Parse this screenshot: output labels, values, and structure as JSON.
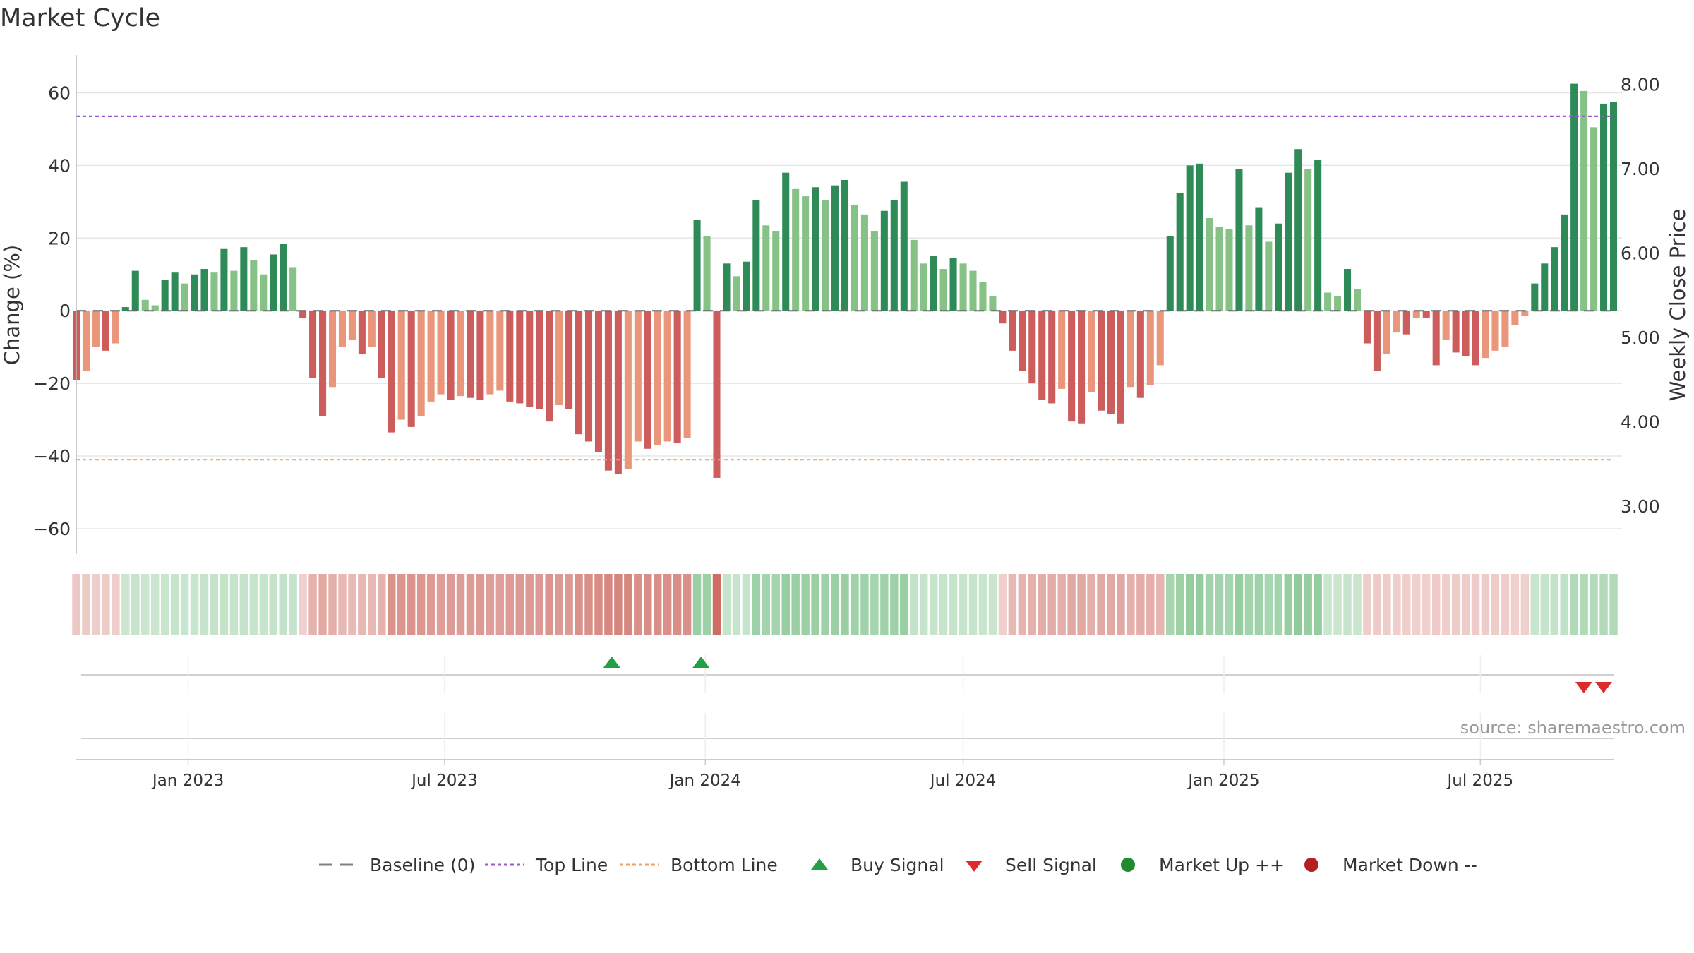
{
  "chart_data": {
    "type": "bar",
    "title": "Market Cycle",
    "ylabel": "Change (%)",
    "y2label": "Weekly Close Price",
    "ylim": [
      -67,
      70
    ],
    "y2lim": [
      2.43,
      8.33
    ],
    "yticks": [
      60,
      40,
      20,
      0,
      -20,
      -40,
      -60
    ],
    "y2ticks": [
      "8.00",
      "7.00",
      "6.00",
      "5.00",
      "4.00",
      "3.00"
    ],
    "date_range": [
      "2022-10-14",
      "2025-10-03"
    ],
    "xticks": [
      {
        "date": "2023-01-01",
        "label": "Jan 2023"
      },
      {
        "date": "2023-07-01",
        "label": "Jul 2023"
      },
      {
        "date": "2024-01-01",
        "label": "Jan 2024"
      },
      {
        "date": "2024-07-01",
        "label": "Jul 2024"
      },
      {
        "date": "2025-01-01",
        "label": "Jan 2025"
      },
      {
        "date": "2025-07-01",
        "label": "Jul 2025"
      }
    ],
    "top_line": 53.5,
    "bottom_line": -41,
    "grid": true,
    "start_date": "2022-10-14",
    "weekly_change": [
      -19,
      -16.5,
      -10,
      -11,
      -9,
      1,
      11,
      3,
      1.5,
      8.5,
      10.5,
      7.5,
      10,
      11.5,
      10.5,
      17,
      11,
      17.5,
      14,
      10,
      15.5,
      18.5,
      12,
      -2,
      -18.5,
      -29,
      -21,
      -10,
      -8,
      -12,
      -10,
      -18.5,
      -33.5,
      -30,
      -32,
      -29,
      -25,
      -23,
      -24.5,
      -23.5,
      -24,
      -24.5,
      -23,
      -22,
      -25,
      -25.5,
      -26.5,
      -27,
      -30.5,
      -26,
      -27,
      -34,
      -36,
      -39,
      -44,
      -45,
      -43.5,
      -36,
      -38,
      -37,
      -36,
      -36.5,
      -35,
      25,
      20.5,
      -46,
      13,
      9.5,
      13.5,
      30.5,
      23.5,
      22,
      38,
      33.5,
      31.5,
      34,
      30.5,
      34.5,
      36,
      29,
      26.5,
      22,
      27.5,
      30.5,
      35.5,
      19.5,
      13,
      15,
      11.5,
      14.5,
      13,
      11,
      8,
      4,
      -3.5,
      -11,
      -16.5,
      -20,
      -24.5,
      -25.5,
      -21.5,
      -30.5,
      -31,
      -22.5,
      -27.5,
      -28.5,
      -31,
      -21,
      -24,
      -20.5,
      -15,
      20.5,
      32.5,
      40,
      40.5,
      25.5,
      23,
      22.5,
      39,
      23.5,
      28.5,
      19,
      24,
      38,
      44.5,
      39,
      41.5,
      5,
      4,
      11.5,
      6,
      -9,
      -16.5,
      -12,
      -6,
      -6.5,
      -2,
      -2,
      -15,
      -8,
      -11.5,
      -12.5,
      -15,
      -13,
      -11,
      -10,
      -4,
      -1.5,
      7.5,
      13,
      17.5,
      26.5,
      62.5,
      60.5,
      50.5,
      57,
      57.5
    ],
    "intensity": [
      0.3,
      0.3,
      0.3,
      0.3,
      0.3,
      0.3,
      0.3,
      0.3,
      0.3,
      0.3,
      0.3,
      0.3,
      0.3,
      0.3,
      0.3,
      0.3,
      0.3,
      0.3,
      0.3,
      0.3,
      0.3,
      0.3,
      0.3,
      0.3,
      0.6,
      0.6,
      0.6,
      0.6,
      0.6,
      0.6,
      0.6,
      0.6,
      0.8,
      0.8,
      0.8,
      0.8,
      0.8,
      0.8,
      0.8,
      0.8,
      0.8,
      0.8,
      0.8,
      0.8,
      0.8,
      0.8,
      0.8,
      0.8,
      0.8,
      0.8,
      0.8,
      0.8,
      0.8,
      0.8,
      0.8,
      0.8,
      0.8,
      0.8,
      0.8,
      0.8,
      0.8,
      0.8,
      0.8,
      0.7,
      0.7,
      1,
      0.3,
      0.3,
      0.3,
      0.6,
      0.6,
      0.6,
      0.6,
      0.6,
      0.6,
      0.6,
      0.6,
      0.6,
      0.6,
      0.6,
      0.6,
      0.6,
      0.6,
      0.6,
      0.6,
      0.3,
      0.3,
      0.3,
      0.3,
      0.3,
      0.3,
      0.3,
      0.3,
      0.3,
      0.3,
      0.6,
      0.6,
      0.6,
      0.6,
      0.6,
      0.6,
      0.6,
      0.6,
      0.6,
      0.6,
      0.6,
      0.6,
      0.6,
      0.6,
      0.6,
      0.6,
      0.6,
      0.6,
      0.6,
      0.6,
      0.6,
      0.6,
      0.6,
      0.6,
      0.6,
      0.6,
      0.6,
      0.6,
      0.6,
      0.6,
      0.6,
      0.6,
      0.3,
      0.3,
      0.3,
      0.3,
      0.3,
      0.3,
      0.3,
      0.3,
      0.3,
      0.3,
      0.3,
      0.3,
      0.3,
      0.3,
      0.3,
      0.3,
      0.3,
      0.3,
      0.3,
      0.3,
      0.3,
      0.3,
      0.3,
      0.3,
      0.3,
      0.3,
      0.3,
      0.3,
      0.3,
      0.3,
      0.3,
      0.3
    ],
    "buy_signals": [
      "2023-10-27",
      "2023-12-29"
    ],
    "sell_signals": [
      "2025-09-12",
      "2025-09-26"
    ],
    "source": "source: sharemaestro.com"
  },
  "legend": [
    {
      "label": "Baseline (0)",
      "symbol": "dash",
      "color": "#808080"
    },
    {
      "label": "Top Line",
      "symbol": "dotted",
      "color": "#9b59d0"
    },
    {
      "label": "Bottom Line",
      "symbol": "dotted",
      "color": "#f0a060"
    },
    {
      "label": "Buy Signal",
      "symbol": "triangle-up",
      "color": "#22a045"
    },
    {
      "label": "Sell Signal",
      "symbol": "triangle-down",
      "color": "#dd2b2b"
    },
    {
      "label": "Market Up ++",
      "symbol": "circle",
      "color": "#1f8a2e"
    },
    {
      "label": "Market Down --",
      "symbol": "circle",
      "color": "#b22222"
    }
  ],
  "colors": {
    "up_dark": "#2e8b57",
    "up_light": "#86c286",
    "down_dark": "#cd5c5c",
    "down_light": "#e9967a",
    "top_line": "#9b59d0",
    "bottom_line": "#e6a86b",
    "grid": "#e6e6e6",
    "axis": "#bbbbbb",
    "buy": "#22a045",
    "sell": "#dd2b2b",
    "band_up": "#46a858",
    "band_down": "#c85a50"
  }
}
